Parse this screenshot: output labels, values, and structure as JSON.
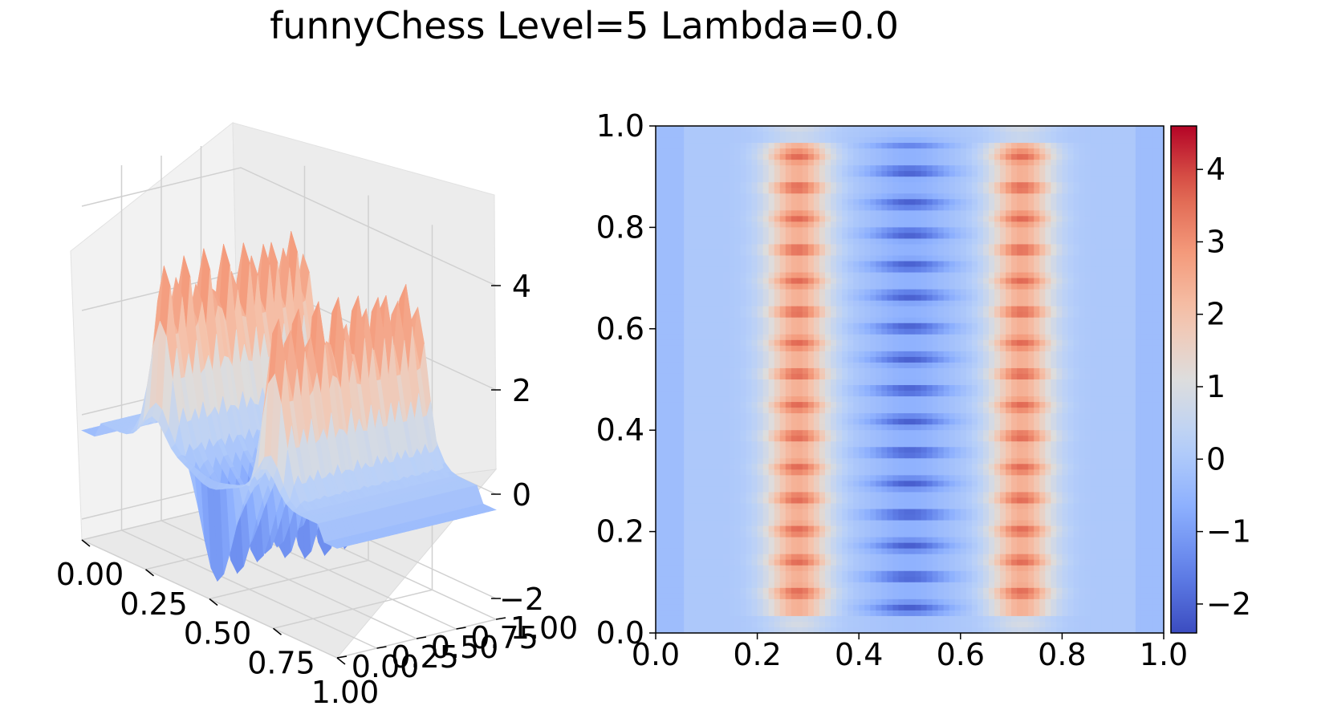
{
  "figure": {
    "title": "funnyChess Level=5 Lambda=0.0"
  },
  "chart_data": [
    {
      "type": "surface3d",
      "colormap": "coolwarm",
      "x_ticks": [
        "0.00",
        "0.25",
        "0.50",
        "0.75",
        "1.00"
      ],
      "y_ticks": [
        "0.00",
        "0.25",
        "0.50",
        "0.75",
        "1.00"
      ],
      "z_ticks": [
        "−2",
        "0",
        "2",
        "4"
      ],
      "xlim": [
        0,
        1
      ],
      "ylim": [
        0,
        1
      ],
      "zlim": [
        -2.4,
        4.6
      ],
      "grid": true
    },
    {
      "type": "heatmap",
      "colormap": "coolwarm",
      "x_ticks": [
        "0.0",
        "0.2",
        "0.4",
        "0.6",
        "0.8",
        "1.0"
      ],
      "y_ticks": [
        "0.0",
        "0.2",
        "0.4",
        "0.6",
        "0.8",
        "1.0"
      ],
      "xlim": [
        0,
        1
      ],
      "ylim": [
        0,
        1
      ],
      "colorbar": {
        "range": [
          -2.4,
          4.6
        ],
        "ticks": [
          "−2",
          "−1",
          "0",
          "1",
          "2",
          "3",
          "4"
        ]
      },
      "bands": {
        "column_peaks_x": [
          0.28,
          0.72
        ],
        "center_x": 0.5,
        "row_count": 15,
        "row_range": [
          0.08,
          0.94
        ],
        "peak_value": 4.5,
        "trough_value": -2.3
      }
    }
  ],
  "colors": {
    "cold": "#3b4cc0",
    "neutral": "#dddddd",
    "hot": "#b40426",
    "pane": "#f2f2f2",
    "grid": "#d0d0d0"
  }
}
